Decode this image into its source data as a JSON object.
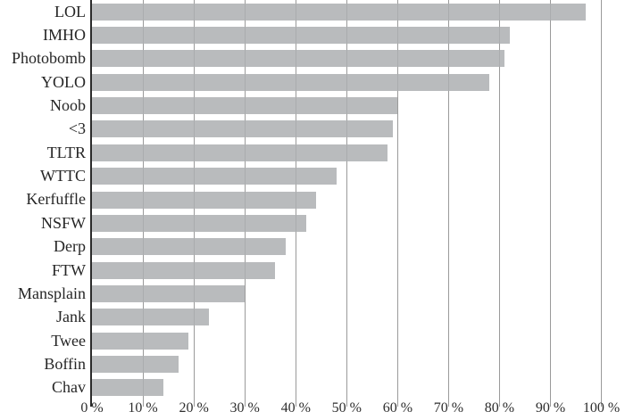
{
  "chart_data": {
    "type": "bar",
    "orientation": "horizontal",
    "title": "",
    "xlabel": "",
    "ylabel": "",
    "categories": [
      "LOL",
      "IMHO",
      "Photobomb",
      "YOLO",
      "Noob",
      "<3",
      "TLTR",
      "WTTC",
      "Kerfuffle",
      "NSFW",
      "Derp",
      "FTW",
      "Mansplain",
      "Jank",
      "Twee",
      "Boffin",
      "Chav"
    ],
    "values": [
      97,
      82,
      81,
      78,
      60,
      59,
      58,
      48,
      44,
      42,
      38,
      36,
      30,
      23,
      19,
      17,
      14
    ],
    "value_unit": "%",
    "xlim": [
      0,
      100
    ],
    "x_ticks": [
      0,
      10,
      20,
      30,
      40,
      50,
      60,
      70,
      80,
      90,
      100
    ],
    "x_tick_labels": [
      "0 %",
      "10 %",
      "20 %",
      "30 %",
      "40 %",
      "50 %",
      "60 %",
      "70 %",
      "80 %",
      "90 %",
      "100 %"
    ],
    "grid": "vertical-gridlines-on",
    "legend": "none",
    "colors": {
      "bar": "#b9bbbd",
      "gridline": "#9a9a9a",
      "axis": "#2b2b2b",
      "text": "#262626"
    }
  }
}
